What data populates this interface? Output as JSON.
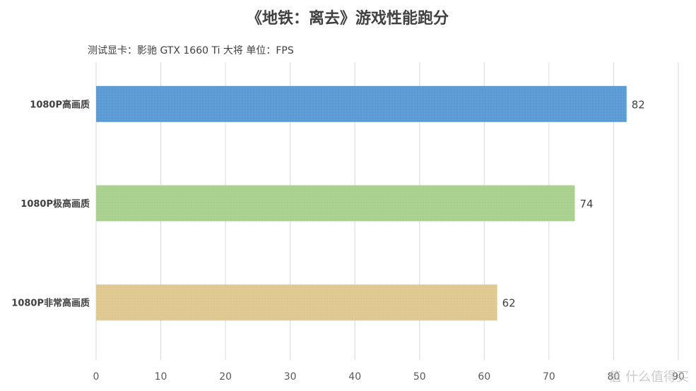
{
  "chart_data": {
    "type": "bar",
    "orientation": "horizontal",
    "title": "《地铁：离去》游戏性能跑分",
    "subtitle": "测试显卡：影驰 GTX 1660 Ti 大将   单位：FPS",
    "categories": [
      "1080P高画质",
      "1080P极高画质",
      "1080P非常高画质"
    ],
    "values": [
      82,
      74,
      62
    ],
    "colors": [
      "#5b9bd5",
      "#a9d18e",
      "#dfc88f"
    ],
    "xlim": [
      0,
      90
    ],
    "x_ticks": [
      "0",
      "10",
      "20",
      "30",
      "40",
      "50",
      "60",
      "70",
      "80",
      "90"
    ],
    "grid": true,
    "legend": "none"
  },
  "watermark": {
    "text": "值 什么值得买"
  }
}
